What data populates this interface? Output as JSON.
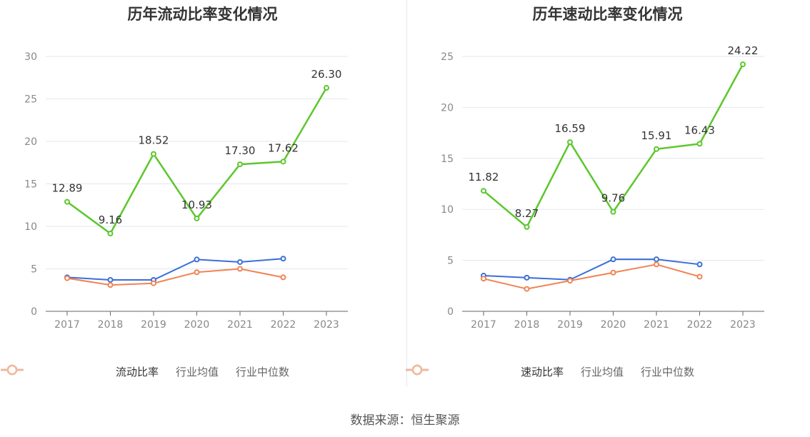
{
  "source_label": "数据来源：恒生聚源",
  "chart_data": [
    {
      "type": "line",
      "title": "历年流动比率变化情况",
      "categories": [
        "2017",
        "2018",
        "2019",
        "2020",
        "2021",
        "2022",
        "2023"
      ],
      "ylim": [
        0,
        30
      ],
      "yticks": [
        0,
        5,
        10,
        15,
        20,
        25,
        30
      ],
      "series": [
        {
          "name": "流动比率",
          "color": "#5cc72c",
          "values": [
            12.89,
            9.16,
            18.52,
            10.93,
            17.3,
            17.62,
            26.3
          ],
          "labels": [
            "12.89",
            "9.16",
            "18.52",
            "10.93",
            "17.30",
            "17.62",
            "26.30"
          ]
        },
        {
          "name": "行业均值",
          "color": "#3a6fd8",
          "values": [
            4.0,
            3.7,
            3.7,
            6.1,
            5.8,
            6.2,
            null
          ]
        },
        {
          "name": "行业中位数",
          "color": "#f08354",
          "values": [
            3.9,
            3.1,
            3.3,
            4.6,
            5.0,
            4.0,
            null
          ]
        }
      ]
    },
    {
      "type": "line",
      "title": "历年速动比率变化情况",
      "categories": [
        "2017",
        "2018",
        "2019",
        "2020",
        "2021",
        "2022",
        "2023"
      ],
      "ylim": [
        0,
        25
      ],
      "yticks": [
        0,
        5,
        10,
        15,
        20,
        25
      ],
      "series": [
        {
          "name": "速动比率",
          "color": "#5cc72c",
          "values": [
            11.82,
            8.27,
            16.59,
            9.76,
            15.91,
            16.43,
            24.22
          ],
          "labels": [
            "11.82",
            "8.27",
            "16.59",
            "9.76",
            "15.91",
            "16.43",
            "24.22"
          ]
        },
        {
          "name": "行业均值",
          "color": "#3a6fd8",
          "values": [
            3.5,
            3.3,
            3.1,
            5.1,
            5.1,
            4.6,
            null
          ]
        },
        {
          "name": "行业中位数",
          "color": "#f08354",
          "values": [
            3.2,
            2.2,
            3.0,
            3.8,
            4.6,
            3.4,
            null
          ]
        }
      ]
    }
  ]
}
